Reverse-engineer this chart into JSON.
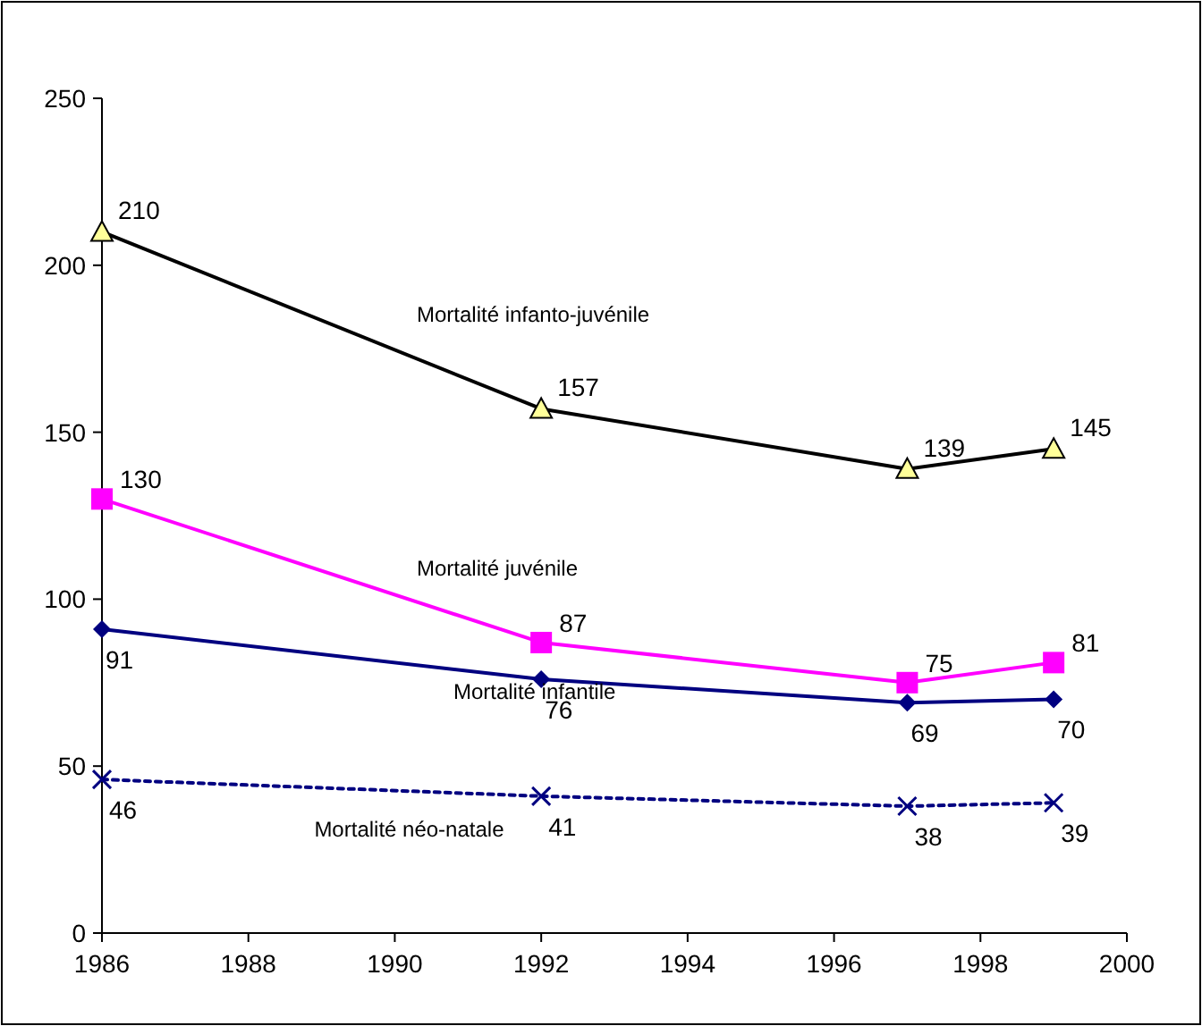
{
  "chart_data": {
    "type": "line",
    "x": [
      1986,
      1992,
      1997,
      1999
    ],
    "series": [
      {
        "name": "Mortalité infanto-juvénile",
        "color": "#000000",
        "marker": "triangle",
        "line_style": "solid",
        "values": [
          210,
          157,
          139,
          145
        ]
      },
      {
        "name": "Mortalité juvénile",
        "color": "#ff00ff",
        "marker": "square",
        "line_style": "solid",
        "values": [
          130,
          87,
          75,
          81
        ]
      },
      {
        "name": "Mortalité infantile",
        "color": "#000080",
        "marker": "diamond",
        "line_style": "solid",
        "values": [
          91,
          76,
          69,
          70
        ]
      },
      {
        "name": "Mortalité néo-natale",
        "color": "#000080",
        "marker": "cross",
        "line_style": "dotted",
        "values": [
          46,
          41,
          38,
          39
        ]
      }
    ],
    "xlim": [
      1986,
      2000
    ],
    "xticks": [
      1986,
      1988,
      1990,
      1992,
      1994,
      1996,
      1998,
      2000
    ],
    "ylim": [
      0,
      250
    ],
    "yticks": [
      0,
      50,
      100,
      150,
      200,
      250
    ],
    "grid": false,
    "data_labels": true
  }
}
